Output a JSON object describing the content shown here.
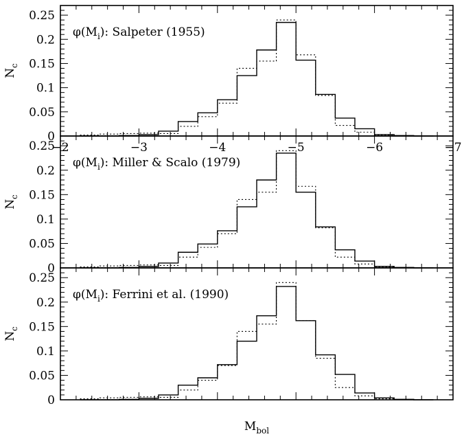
{
  "figure": {
    "xlabel_main": "M",
    "xlabel_sub": "bol",
    "ylabel_main": "N",
    "ylabel_sub": "c"
  },
  "chart_data": [
    {
      "type": "histogram",
      "annotation": {
        "pre": "φ(M",
        "sub": "i",
        "post": "): Salpeter (1955)"
      },
      "xlim": [
        -2,
        -7
      ],
      "ylim": [
        0,
        0.27
      ],
      "xticks": [
        -2,
        -3,
        -4,
        -5,
        -6,
        -7
      ],
      "xtick_labels": [
        "−2",
        "−3",
        "−4",
        "−5",
        "−6",
        "−7"
      ],
      "yticks": [
        0,
        0.05,
        0.1,
        0.15,
        0.2,
        0.25
      ],
      "ytick_labels": [
        "0",
        "0.05",
        "0.1",
        "0.15",
        "0.2",
        "0.25"
      ],
      "bin_edges": [
        -2.25,
        -2.5,
        -2.75,
        -3.0,
        -3.25,
        -3.5,
        -3.75,
        -4.0,
        -4.25,
        -4.5,
        -4.75,
        -5.0,
        -5.25,
        -5.5,
        -5.75,
        -6.0,
        -6.25,
        -6.5,
        -6.75
      ],
      "series": [
        {
          "style": "solid",
          "values": [
            0.0,
            0.0,
            0.001,
            0.003,
            0.01,
            0.03,
            0.048,
            0.075,
            0.125,
            0.178,
            0.235,
            0.157,
            0.086,
            0.037,
            0.015,
            0.003,
            0.001,
            0.0
          ]
        },
        {
          "style": "dotted",
          "values": [
            0.002,
            0.004,
            0.005,
            0.006,
            0.005,
            0.02,
            0.04,
            0.068,
            0.14,
            0.155,
            0.24,
            0.168,
            0.084,
            0.022,
            0.008,
            0.002,
            0.0,
            0.0
          ]
        }
      ]
    },
    {
      "type": "histogram",
      "annotation": {
        "pre": "φ(M",
        "sub": "i",
        "post": "): Miller & Scalo (1979)"
      },
      "xlim": [
        -2,
        -7
      ],
      "ylim": [
        0,
        0.27
      ],
      "xticks": [
        -2,
        -3,
        -4,
        -5,
        -6,
        -7
      ],
      "yticks": [
        0,
        0.05,
        0.1,
        0.15,
        0.2,
        0.25
      ],
      "ytick_labels": [
        "0",
        "0.05",
        "0.1",
        "0.15",
        "0.2",
        "0.25"
      ],
      "bin_edges": [
        -2.25,
        -2.5,
        -2.75,
        -3.0,
        -3.25,
        -3.5,
        -3.75,
        -4.0,
        -4.25,
        -4.5,
        -4.75,
        -5.0,
        -5.25,
        -5.5,
        -5.75,
        -6.0,
        -6.25,
        -6.5,
        -6.75
      ],
      "series": [
        {
          "style": "solid",
          "values": [
            0.0,
            0.0,
            0.001,
            0.003,
            0.01,
            0.032,
            0.049,
            0.076,
            0.125,
            0.18,
            0.235,
            0.155,
            0.084,
            0.037,
            0.014,
            0.003,
            0.001,
            0.0
          ]
        },
        {
          "style": "dotted",
          "values": [
            0.002,
            0.004,
            0.005,
            0.006,
            0.005,
            0.022,
            0.042,
            0.07,
            0.14,
            0.155,
            0.24,
            0.167,
            0.082,
            0.022,
            0.008,
            0.002,
            0.0,
            0.0
          ]
        }
      ]
    },
    {
      "type": "histogram",
      "annotation": {
        "pre": "φ(M",
        "sub": "i",
        "post": "): Ferrini et al. (1990)"
      },
      "xlim": [
        -2,
        -7
      ],
      "ylim": [
        0,
        0.27
      ],
      "xticks": [
        -2,
        -3,
        -4,
        -5,
        -6,
        -7
      ],
      "yticks": [
        0,
        0.05,
        0.1,
        0.15,
        0.2,
        0.25
      ],
      "ytick_labels": [
        "0",
        "0.05",
        "0.1",
        "0.15",
        "0.2",
        "0.25"
      ],
      "bin_edges": [
        -2.25,
        -2.5,
        -2.75,
        -3.0,
        -3.25,
        -3.5,
        -3.75,
        -4.0,
        -4.25,
        -4.5,
        -4.75,
        -5.0,
        -5.25,
        -5.5,
        -5.75,
        -6.0,
        -6.25,
        -6.5,
        -6.75
      ],
      "series": [
        {
          "style": "solid",
          "values": [
            0.0,
            0.0,
            0.001,
            0.003,
            0.01,
            0.03,
            0.045,
            0.072,
            0.12,
            0.172,
            0.232,
            0.162,
            0.092,
            0.052,
            0.014,
            0.004,
            0.001,
            0.0
          ]
        },
        {
          "style": "dotted",
          "values": [
            0.002,
            0.004,
            0.005,
            0.006,
            0.005,
            0.02,
            0.04,
            0.07,
            0.14,
            0.155,
            0.24,
            0.162,
            0.085,
            0.025,
            0.008,
            0.002,
            0.0,
            0.0
          ]
        }
      ]
    }
  ]
}
